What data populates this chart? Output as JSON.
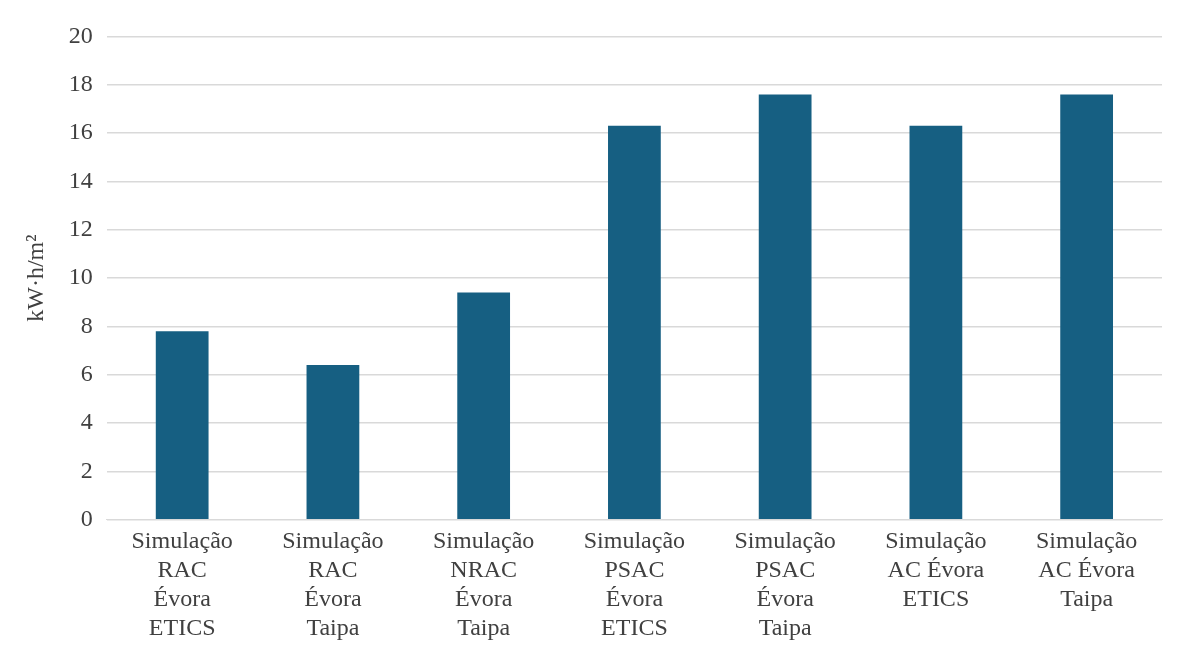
{
  "chart_data": {
    "type": "bar",
    "ylabel": "kW·h/m²",
    "categories": [
      "Simulação\nRAC\nÉvora\nETICS",
      "Simulação\nRAC\nÉvora\nTaipa",
      "Simulação\nNRAC\nÉvora\nTaipa",
      "Simulação\nPSAC\nÉvora\nETICS",
      "Simulação\nPSAC\nÉvora\nTaipa",
      "Simulação\nAC Évora\nETICS",
      "Simulação\nAC Évora\nTaipa"
    ],
    "values": [
      7.8,
      6.4,
      9.4,
      16.3,
      17.6,
      16.3,
      17.6
    ],
    "color": "#165f82",
    "ylim": [
      0,
      20
    ],
    "yticks": [
      0,
      2,
      4,
      6,
      8,
      10,
      12,
      14,
      16,
      18,
      20
    ],
    "grid": "y"
  }
}
